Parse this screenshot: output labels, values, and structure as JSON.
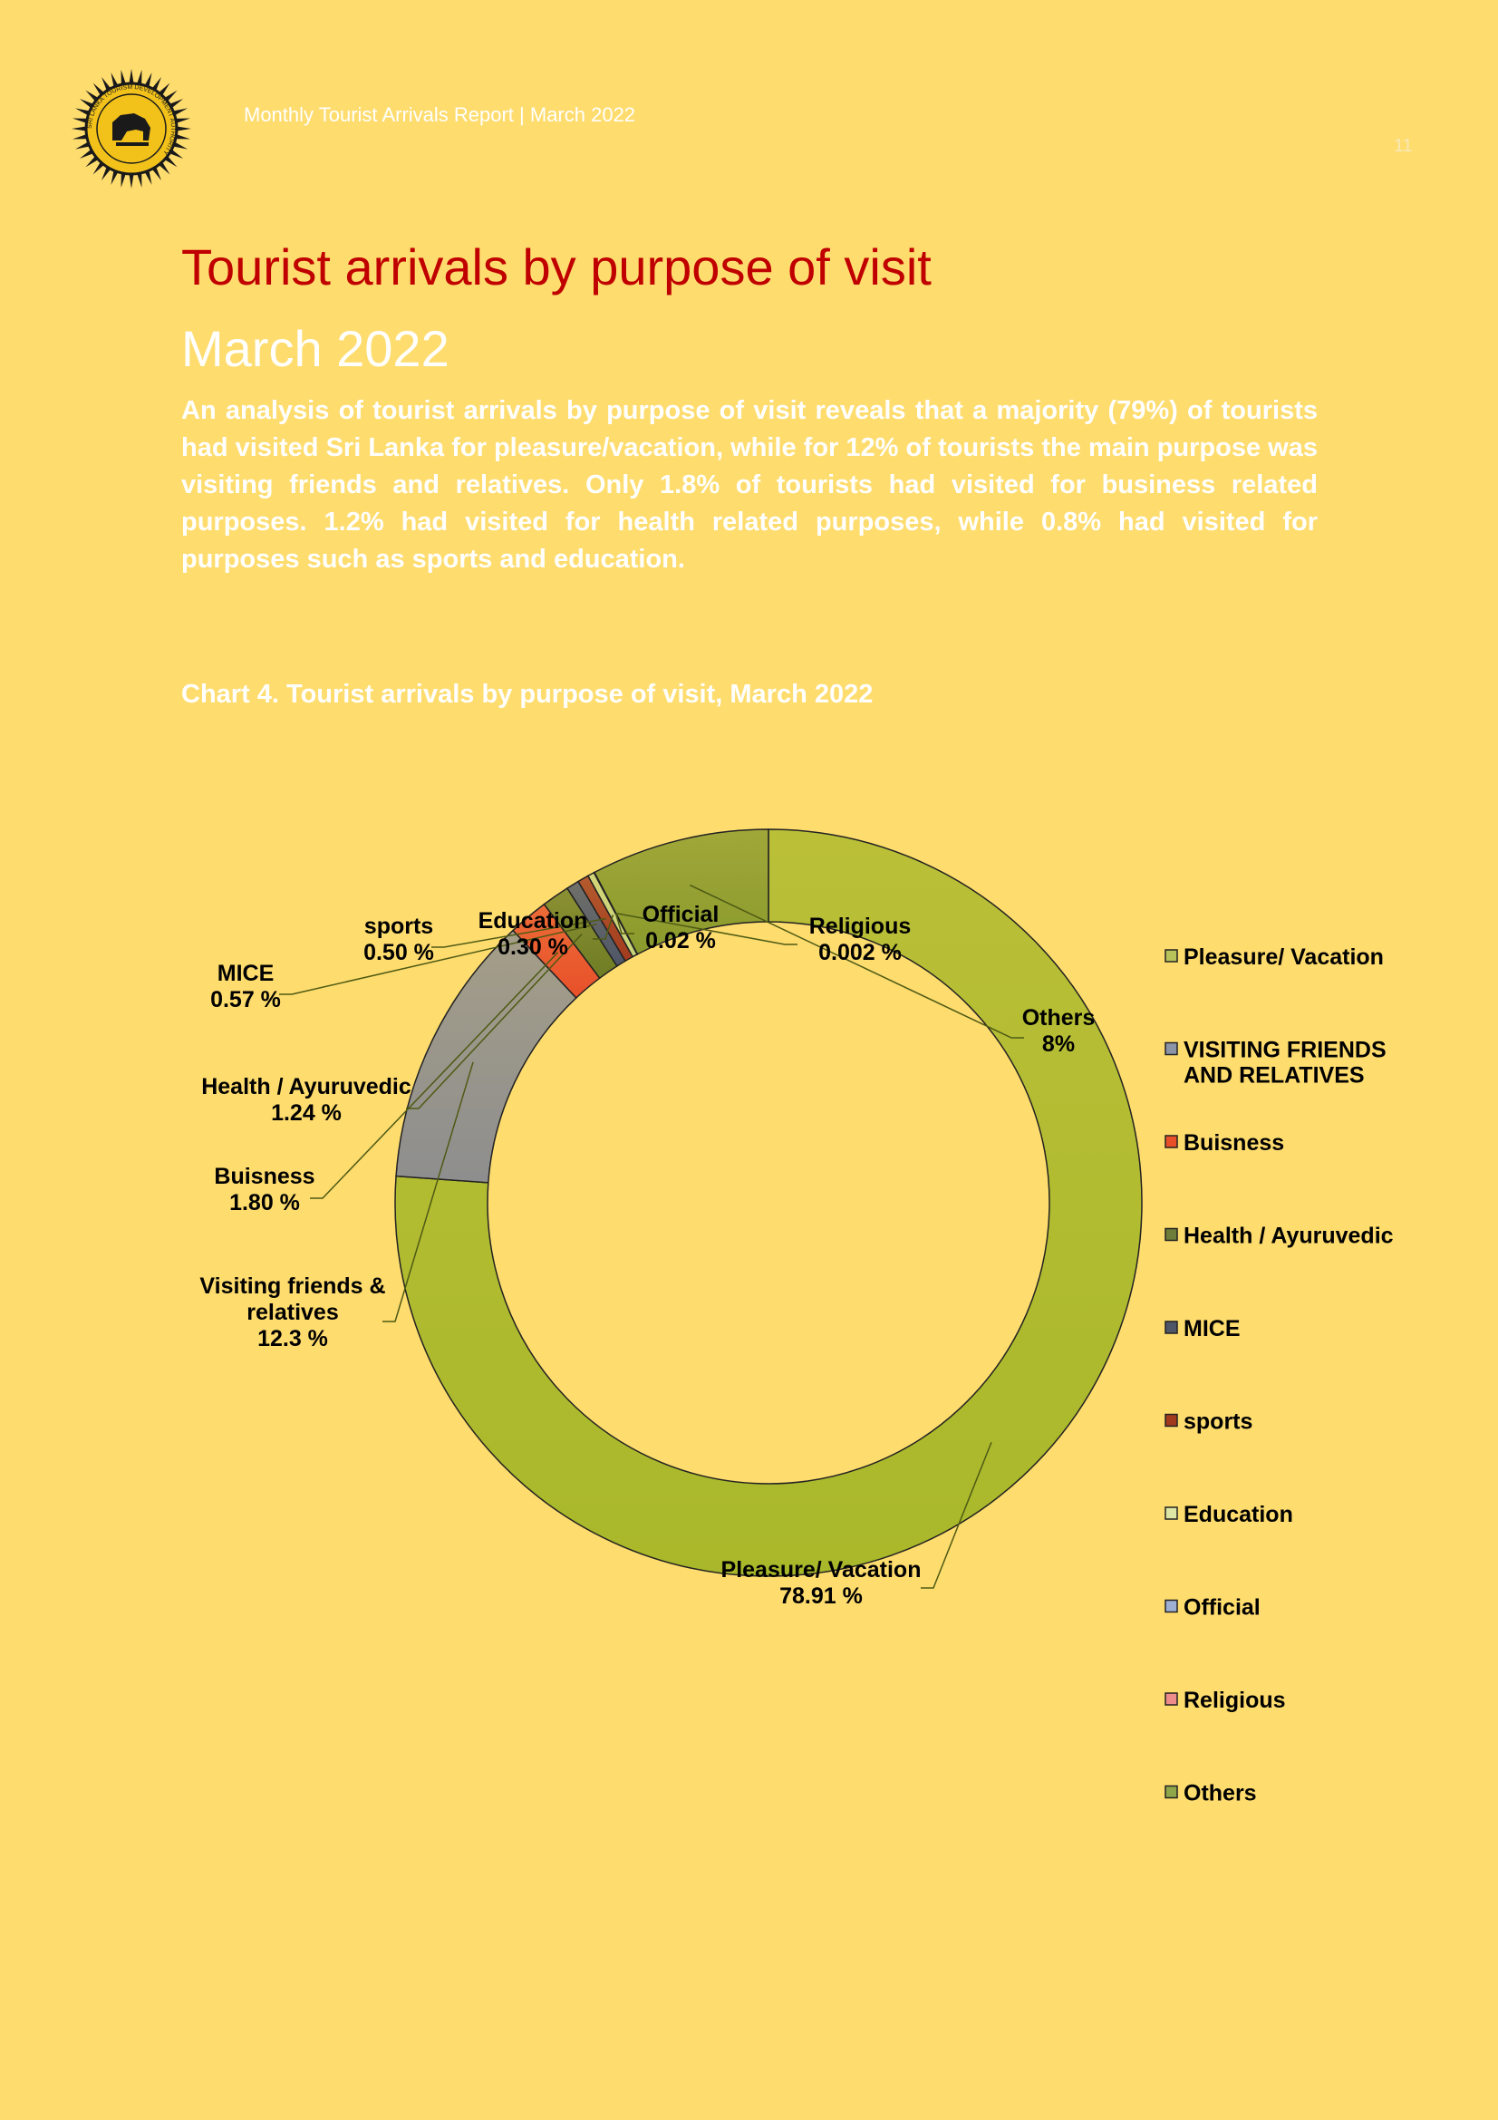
{
  "header": {
    "report_title": "Monthly Tourist Arrivals Report | March 2022",
    "page_number": "11",
    "logo_text": "SRI LANKA TOURISM DEVELOPMENT AUTHORITY"
  },
  "page": {
    "title": "Tourist arrivals by purpose of visit",
    "subtitle": "March 2022",
    "intro": "An analysis of tourist arrivals by purpose of visit reveals that a majority (79%) of tourists had visited Sri Lanka for pleasure/vacation, while for 12% of tourists the main purpose was visiting friends and relatives. Only 1.8% of tourists had visited for business related purposes. 1.2% had visited for health related purposes, while 0.8% had visited for purposes such as sports and education.",
    "chart_caption": "Chart 4.  Tourist arrivals by purpose of visit, March 2022"
  },
  "colors": {
    "background": "#FEDC6E",
    "title": "#C00000"
  },
  "chart_data": {
    "type": "pie",
    "variant": "donut",
    "title": "",
    "unit": "%",
    "slices": [
      {
        "name": "Pleasure/ Vacation",
        "value": 78.91,
        "label_lines": [
          "Pleasure/ Vacation",
          "78.91 %"
        ],
        "color": "#A9B82A"
      },
      {
        "name": "Visiting friends & relatives",
        "value": 12.3,
        "label_lines": [
          "Visiting friends &",
          "relatives",
          "12.3 %"
        ],
        "color": "#8E8E8E"
      },
      {
        "name": "Buisness",
        "value": 1.8,
        "label_lines": [
          "Buisness",
          "1.80 %"
        ],
        "color": "#E8502A"
      },
      {
        "name": "Health / Ayuruvedic",
        "value": 1.24,
        "label_lines": [
          "Health / Ayuruvedic",
          "1.24 %"
        ],
        "color": "#6F7D24"
      },
      {
        "name": "MICE",
        "value": 0.57,
        "label_lines": [
          "MICE",
          "0.57 %"
        ],
        "color": "#4E5668"
      },
      {
        "name": "sports",
        "value": 0.5,
        "label_lines": [
          "sports",
          "0.50 %"
        ],
        "color": "#A23B1E"
      },
      {
        "name": "Education",
        "value": 0.3,
        "label_lines": [
          "Education",
          "0.30 %"
        ],
        "color": "#C8D47A"
      },
      {
        "name": "Official",
        "value": 0.02,
        "label_lines": [
          "Official",
          "0.02 %"
        ],
        "color": "#8FA1C4"
      },
      {
        "name": "Religious",
        "value": 0.002,
        "label_lines": [
          "Religious",
          "0.002 %"
        ],
        "color": "#E87878"
      },
      {
        "name": "Others",
        "value": 8,
        "label_lines": [
          "Others",
          "8%"
        ],
        "color": "#8A9A2C"
      }
    ],
    "legend": {
      "position": "right",
      "items": [
        {
          "lines": [
            "Pleasure/ Vacation"
          ],
          "color": "#B8C45A"
        },
        {
          "lines": [
            "VISITING FRIENDS",
            "AND RELATIVES"
          ],
          "color": "#8C94A8"
        },
        {
          "lines": [
            "Buisness"
          ],
          "color": "#E8502A"
        },
        {
          "lines": [
            "Health / Ayuruvedic"
          ],
          "color": "#6F7D3A"
        },
        {
          "lines": [
            "MICE"
          ],
          "color": "#4E5668"
        },
        {
          "lines": [
            "sports"
          ],
          "color": "#A23B1E"
        },
        {
          "lines": [
            "Education"
          ],
          "color": "#DDE6A4"
        },
        {
          "lines": [
            "Official"
          ],
          "color": "#9DB0D4"
        },
        {
          "lines": [
            "Religious"
          ],
          "color": "#EE8C8C"
        },
        {
          "lines": [
            "Others"
          ],
          "color": "#8FA64A"
        }
      ]
    }
  }
}
